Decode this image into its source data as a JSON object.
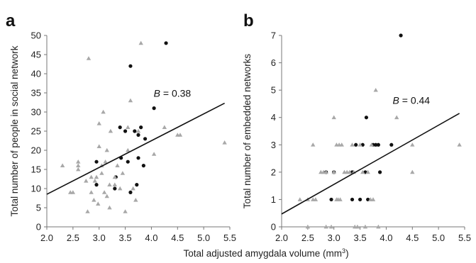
{
  "shared_xlabel": "Total adjusted amygdala volume (mm",
  "shared_xlabel_sup": "3",
  "shared_xlabel_close": ")",
  "chart_data": [
    {
      "type": "scatter",
      "panel": "a",
      "xlabel": "",
      "ylabel": "Total number of people in social network",
      "xlim": [
        2.0,
        5.5
      ],
      "ylim": [
        0,
        50
      ],
      "xticks": [
        "2.0",
        "2.5",
        "3.0",
        "3.5",
        "4.0",
        "4.5",
        "5.0",
        "5.5"
      ],
      "yticks": [
        "0",
        "5",
        "10",
        "15",
        "20",
        "25",
        "30",
        "35",
        "40",
        "45",
        "50"
      ],
      "annotation": {
        "text_label": "B",
        "text_value": " = 0.38",
        "x": 4.4,
        "y": 34
      },
      "fit_line": {
        "x": [
          2.0,
          5.4
        ],
        "y": [
          8.5,
          32.3
        ]
      },
      "series": [
        {
          "marker": "circle",
          "color": "#111111",
          "points": [
            [
              2.95,
              17
            ],
            [
              2.95,
              11
            ],
            [
              3.3,
              10
            ],
            [
              3.32,
              13
            ],
            [
              3.4,
              26
            ],
            [
              3.42,
              18
            ],
            [
              3.5,
              25
            ],
            [
              3.55,
              17
            ],
            [
              3.6,
              42
            ],
            [
              3.6,
              9
            ],
            [
              3.68,
              25
            ],
            [
              3.72,
              11
            ],
            [
              3.75,
              24
            ],
            [
              3.75,
              18
            ],
            [
              3.8,
              26
            ],
            [
              3.85,
              16
            ],
            [
              3.88,
              23
            ],
            [
              4.05,
              31
            ],
            [
              4.28,
              48
            ]
          ]
        },
        {
          "marker": "triangle",
          "color": "#a8a8a8",
          "points": [
            [
              2.3,
              16
            ],
            [
              2.45,
              9
            ],
            [
              2.5,
              9
            ],
            [
              2.6,
              15
            ],
            [
              2.6,
              16
            ],
            [
              2.6,
              17
            ],
            [
              2.75,
              12
            ],
            [
              2.78,
              4
            ],
            [
              2.8,
              44
            ],
            [
              2.85,
              13
            ],
            [
              2.85,
              9
            ],
            [
              2.9,
              7
            ],
            [
              2.92,
              12
            ],
            [
              2.95,
              13
            ],
            [
              2.98,
              6
            ],
            [
              3.0,
              27
            ],
            [
              3.0,
              21
            ],
            [
              3.05,
              14
            ],
            [
              3.05,
              16
            ],
            [
              3.08,
              30
            ],
            [
              3.1,
              9
            ],
            [
              3.12,
              17
            ],
            [
              3.15,
              8
            ],
            [
              3.15,
              20
            ],
            [
              3.2,
              11
            ],
            [
              3.2,
              5
            ],
            [
              3.22,
              25
            ],
            [
              3.3,
              11
            ],
            [
              3.3,
              13
            ],
            [
              3.35,
              16
            ],
            [
              3.4,
              10
            ],
            [
              3.45,
              14
            ],
            [
              3.5,
              4
            ],
            [
              3.55,
              20
            ],
            [
              3.55,
              26
            ],
            [
              3.6,
              33
            ],
            [
              3.65,
              10
            ],
            [
              3.7,
              7
            ],
            [
              3.75,
              25
            ],
            [
              3.8,
              48
            ],
            [
              4.05,
              19
            ],
            [
              4.25,
              26
            ],
            [
              4.5,
              24
            ],
            [
              4.55,
              24
            ],
            [
              5.4,
              22
            ]
          ]
        }
      ]
    },
    {
      "type": "scatter",
      "panel": "b",
      "xlabel": "",
      "ylabel": "Total number of embedded networks",
      "xlim": [
        2.0,
        5.5
      ],
      "ylim": [
        0,
        7
      ],
      "xticks": [
        "2.0",
        "2.5",
        "3.0",
        "3.5",
        "4.0",
        "4.5",
        "5.0",
        "5.5"
      ],
      "yticks": [
        "0",
        "1",
        "2",
        "3",
        "4",
        "5",
        "6",
        "7"
      ],
      "annotation": {
        "text_label": "B",
        "text_value": " = 0.44",
        "x": 4.48,
        "y": 4.5
      },
      "fit_line": {
        "x": [
          2.0,
          5.4
        ],
        "y": [
          0.47,
          4.15
        ]
      },
      "series": [
        {
          "marker": "circle",
          "color": "#111111",
          "points": [
            [
              2.85,
              2
            ],
            [
              2.95,
              1
            ],
            [
              3.0,
              2
            ],
            [
              3.35,
              2
            ],
            [
              3.35,
              1
            ],
            [
              3.42,
              3
            ],
            [
              3.5,
              1
            ],
            [
              3.55,
              3
            ],
            [
              3.6,
              2
            ],
            [
              3.62,
              4
            ],
            [
              3.65,
              1
            ],
            [
              3.75,
              3
            ],
            [
              3.8,
              3
            ],
            [
              3.85,
              3
            ],
            [
              3.88,
              2
            ],
            [
              4.1,
              3
            ],
            [
              4.28,
              7
            ]
          ]
        },
        {
          "marker": "triangle",
          "color": "#a8a8a8",
          "points": [
            [
              2.35,
              1
            ],
            [
              2.5,
              0
            ],
            [
              2.5,
              1
            ],
            [
              2.6,
              3
            ],
            [
              2.6,
              1
            ],
            [
              2.65,
              1
            ],
            [
              2.75,
              2
            ],
            [
              2.8,
              2
            ],
            [
              2.85,
              2
            ],
            [
              2.85,
              0
            ],
            [
              2.95,
              0
            ],
            [
              3.0,
              4
            ],
            [
              3.0,
              2
            ],
            [
              3.05,
              3
            ],
            [
              3.05,
              1
            ],
            [
              3.08,
              1
            ],
            [
              3.1,
              3
            ],
            [
              3.12,
              1
            ],
            [
              3.15,
              3
            ],
            [
              3.2,
              2
            ],
            [
              3.25,
              2
            ],
            [
              3.3,
              2
            ],
            [
              3.35,
              3
            ],
            [
              3.38,
              2
            ],
            [
              3.4,
              0
            ],
            [
              3.45,
              0
            ],
            [
              3.5,
              3
            ],
            [
              3.55,
              2
            ],
            [
              3.6,
              0
            ],
            [
              3.65,
              2
            ],
            [
              3.7,
              1
            ],
            [
              3.72,
              3
            ],
            [
              3.75,
              1
            ],
            [
              3.8,
              5
            ],
            [
              3.85,
              0
            ],
            [
              4.2,
              4
            ],
            [
              4.5,
              3
            ],
            [
              4.5,
              2
            ],
            [
              5.4,
              3
            ]
          ]
        }
      ]
    }
  ]
}
